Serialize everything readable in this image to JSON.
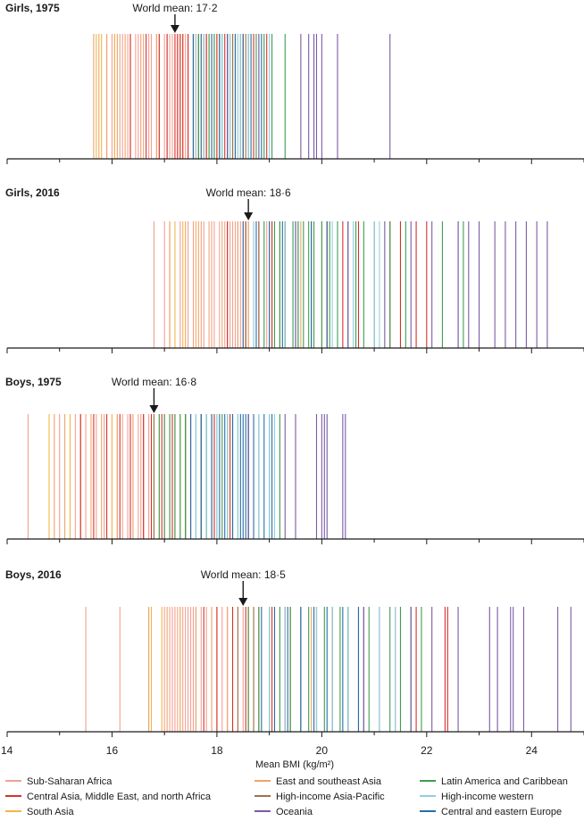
{
  "chart_data": {
    "type": "strip",
    "xlabel": "Mean BMI (kg/m²)",
    "xlim": [
      14,
      25
    ],
    "xticks": [
      14,
      16,
      18,
      20,
      22,
      24
    ],
    "colors": {
      "ssa": "#f4a091",
      "cme": "#d7302a",
      "sa": "#f1b64a",
      "esa": "#eda56a",
      "hiap": "#a0704a",
      "oce": "#7a5ba6",
      "lac": "#3d9e4f",
      "hiw": "#8ecfe3",
      "cee": "#2a6ea6"
    },
    "legend": [
      {
        "key": "ssa",
        "label": "Sub-Saharan Africa"
      },
      {
        "key": "cme",
        "label": "Central Asia, Middle East, and north Africa"
      },
      {
        "key": "sa",
        "label": "South Asia"
      },
      {
        "key": "esa",
        "label": "East and southeast Asia"
      },
      {
        "key": "hiap",
        "label": "High-income Asia-Pacific"
      },
      {
        "key": "oce",
        "label": "Oceania"
      },
      {
        "key": "lac",
        "label": "Latin America and Caribbean"
      },
      {
        "key": "hiw",
        "label": "High-income western"
      },
      {
        "key": "cee",
        "label": "Central and eastern Europe"
      }
    ],
    "panels": [
      {
        "title": "Girls, 1975",
        "mean": 17.2,
        "mean_label": "World mean: 17·2",
        "series": {
          "ssa": [
            15.9,
            16.0,
            16.05,
            16.15,
            16.2,
            16.3,
            16.35,
            16.45,
            16.5,
            16.6,
            16.7,
            16.75,
            16.85,
            16.9,
            17.0,
            17.05,
            17.1,
            17.15,
            17.25,
            17.35,
            17.4,
            17.45,
            17.55,
            17.6,
            17.7,
            17.8,
            17.9,
            18.05
          ],
          "cme": [
            16.35,
            16.65,
            16.9,
            17.05,
            17.2,
            17.25,
            17.3,
            17.35,
            17.45,
            17.55,
            17.65,
            17.8,
            18.0,
            18.15,
            18.3,
            18.5,
            18.7,
            18.95
          ],
          "sa": [
            15.7,
            15.8,
            16.05,
            17.3
          ],
          "esa": [
            15.65,
            15.75,
            15.9,
            16.1,
            16.25,
            16.55,
            16.85,
            17.6,
            17.85,
            18.0,
            18.2,
            18.6
          ],
          "hiap": [
            17.95,
            18.3,
            18.55
          ],
          "oce": [
            18.2,
            18.8,
            19.6,
            19.75,
            19.85,
            19.9,
            20.0,
            20.3,
            21.3
          ],
          "lac": [
            17.55,
            17.65,
            17.75,
            17.85,
            17.95,
            18.05,
            18.1,
            18.2,
            18.25,
            18.35,
            18.45,
            18.6,
            18.75,
            18.9,
            19.05,
            19.3
          ],
          "hiw": [
            17.6,
            17.75,
            18.1,
            18.25,
            18.4,
            18.45,
            18.6,
            18.8,
            19.0
          ],
          "cee": [
            17.55,
            17.7,
            17.9,
            18.05,
            18.2,
            18.35,
            18.5,
            18.65,
            18.85
          ]
        }
      },
      {
        "title": "Girls, 2016",
        "mean": 18.6,
        "mean_label": "World mean: 18·6",
        "series": {
          "ssa": [
            16.8,
            17.0,
            17.1,
            17.3,
            17.45,
            17.55,
            17.65,
            17.75,
            17.85,
            17.95,
            18.05,
            18.15,
            18.2,
            18.25,
            18.3,
            18.35,
            18.4,
            18.45,
            18.5,
            18.55,
            18.6,
            18.7,
            18.8,
            18.95,
            19.05
          ],
          "cme": [
            18.2,
            18.55,
            18.8,
            19.05,
            19.3,
            19.55,
            19.8,
            20.1,
            20.4,
            20.7,
            21.0,
            21.3,
            21.5,
            21.8,
            22.0
          ],
          "sa": [
            17.2,
            17.35,
            17.6
          ],
          "esa": [
            17.1,
            17.4,
            17.7,
            17.9,
            18.1,
            18.4,
            18.6,
            19.0,
            19.3,
            19.6,
            20.0
          ],
          "hiap": [
            18.55,
            18.8,
            19.2
          ],
          "oce": [
            19.5,
            20.5,
            21.2,
            21.7,
            22.1,
            22.6,
            22.8,
            23.0,
            23.3,
            23.5,
            23.7,
            23.9,
            24.1,
            24.3
          ],
          "lac": [
            18.9,
            19.1,
            19.2,
            19.3,
            19.45,
            19.55,
            19.65,
            19.75,
            19.85,
            20.0,
            20.15,
            20.3,
            20.5,
            20.65,
            20.8,
            21.0,
            21.3,
            21.6,
            22.3,
            22.6,
            22.7
          ],
          "hiw": [
            18.7,
            19.0,
            19.3,
            19.5,
            19.8,
            20.2,
            20.6,
            21.0,
            21.1
          ],
          "cee": [
            18.5,
            18.75,
            19.0,
            19.25,
            19.5,
            19.8,
            20.1
          ]
        }
      },
      {
        "title": "Boys, 1975",
        "mean": 16.8,
        "mean_label": "World mean: 16·8",
        "series": {
          "ssa": [
            14.4,
            15.0,
            15.3,
            15.5,
            15.7,
            15.85,
            16.0,
            16.1,
            16.2,
            16.3,
            16.4,
            16.5,
            16.55,
            16.6,
            16.7,
            16.8,
            16.9,
            17.0,
            17.1,
            17.2,
            17.3
          ],
          "cme": [
            15.4,
            15.65,
            15.9,
            16.15,
            16.35,
            16.6,
            16.75,
            16.95,
            17.15,
            17.4,
            17.7,
            17.95,
            18.25,
            18.6
          ],
          "sa": [
            14.8,
            15.2,
            16.0
          ],
          "esa": [
            14.9,
            15.1,
            15.4,
            15.6,
            15.8,
            16.1,
            16.4,
            16.6,
            17.2,
            17.5,
            17.9
          ],
          "hiap": [
            16.8,
            17.4,
            17.8
          ],
          "oce": [
            18.6,
            19.3,
            19.5,
            19.9,
            20.0,
            20.05,
            20.1,
            20.4,
            20.45
          ],
          "lac": [
            16.9,
            17.0,
            17.1,
            17.2,
            17.3,
            17.4,
            17.5,
            17.6,
            17.7,
            17.8,
            17.9,
            18.0,
            18.1,
            18.2,
            18.3,
            18.4,
            18.6,
            18.8,
            19.0,
            19.2
          ],
          "hiw": [
            17.6,
            17.8,
            18.0,
            18.2,
            18.4,
            18.6,
            18.8,
            19.0,
            19.1
          ],
          "cee": [
            17.5,
            17.7,
            17.9,
            18.05,
            18.15,
            18.3,
            18.45,
            18.5,
            18.55,
            18.6,
            18.7,
            18.9,
            19.05
          ]
        }
      },
      {
        "title": "Boys, 2016",
        "mean": 18.5,
        "mean_label": "World mean: 18·5",
        "series": {
          "ssa": [
            15.5,
            16.15,
            16.7,
            17.0,
            17.1,
            17.15,
            17.2,
            17.25,
            17.3,
            17.35,
            17.4,
            17.45,
            17.5,
            17.55,
            17.6,
            17.7,
            17.8,
            17.9,
            18.0,
            18.1,
            18.2,
            18.3,
            18.4,
            18.5,
            18.6,
            18.7,
            18.8
          ],
          "cme": [
            17.75,
            18.0,
            18.3,
            18.55,
            18.8,
            19.05,
            19.3,
            19.6,
            19.9,
            20.2,
            20.5,
            20.8,
            21.1,
            21.4,
            21.8,
            22.35,
            22.4
          ],
          "sa": [
            16.75,
            16.95,
            17.3
          ],
          "esa": [
            16.7,
            17.05,
            17.6,
            17.9,
            18.2,
            18.6,
            19.0,
            19.4,
            19.8
          ],
          "hiap": [
            18.4,
            18.7,
            19.4
          ],
          "oce": [
            20.8,
            21.7,
            22.1,
            22.6,
            23.2,
            23.35,
            23.6,
            23.65,
            23.85,
            24.5,
            24.75
          ],
          "lac": [
            18.6,
            18.8,
            19.0,
            19.2,
            19.4,
            19.6,
            19.75,
            19.9,
            20.05,
            20.2,
            20.35,
            20.5,
            20.7,
            20.9,
            21.1,
            21.3,
            21.5,
            21.7,
            21.9
          ],
          "hiw": [
            19.0,
            19.3,
            19.6,
            19.9,
            20.2,
            20.5,
            20.8,
            21.1,
            21.4
          ],
          "cee": [
            18.85,
            19.1,
            19.35,
            19.6,
            19.85,
            20.1,
            20.4,
            20.7
          ]
        }
      }
    ]
  }
}
